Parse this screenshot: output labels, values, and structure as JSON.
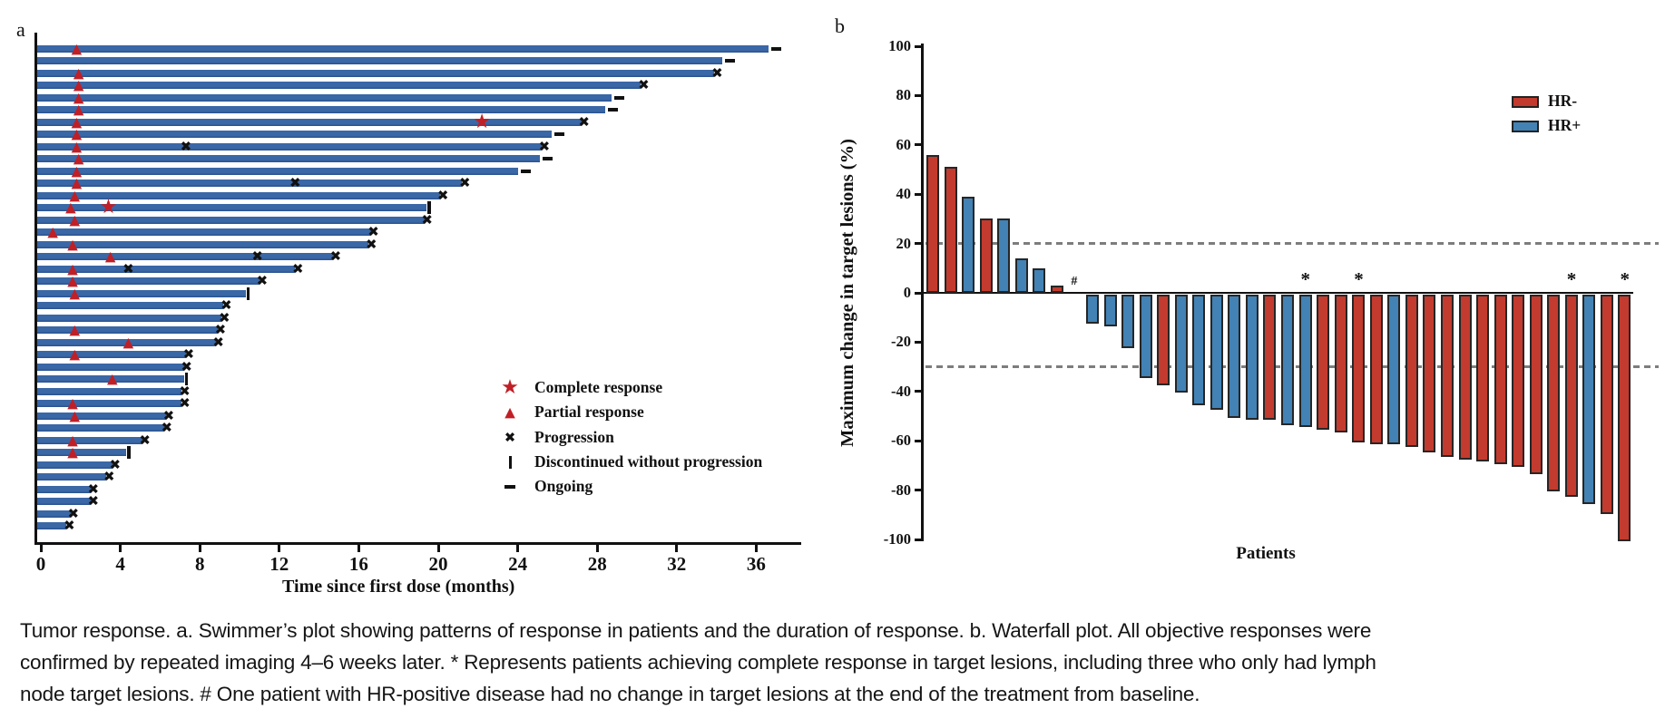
{
  "figure_labels": {
    "a": "a",
    "b": "b"
  },
  "caption": {
    "line1": "Tumor response. a. Swimmer’s plot showing patterns of response in patients and the duration of response. b. Waterfall plot. All objective responses were",
    "line2": "confirmed by repeated imaging 4–6 weeks later. * Represents patients achieving complete response in target lesions, including three who only had lymph",
    "line3": "node target lesions. # One patient with HR-positive disease had no change in target lesions at the end of the treatment from baseline."
  },
  "colors": {
    "swimmer_bar": "#3a67a6",
    "swimmer_bar_edge": "#27508c",
    "response_red": "#c01f26",
    "marker_black": "#111111",
    "waterfall_red": "#c23b2e",
    "waterfall_blue": "#4282b4",
    "waterfall_bar_border": "#262626",
    "threshold_gray": "#7d7d7d",
    "axis_black": "#111111"
  },
  "chart_data": [
    {
      "type": "bar",
      "subtype": "swimmer",
      "panel": "a",
      "xlabel": "Time since first dose (months)",
      "xticks": [
        0,
        4,
        8,
        12,
        16,
        20,
        24,
        28,
        32,
        36
      ],
      "xlim": [
        0,
        38.5
      ],
      "legend": [
        {
          "marker": "star",
          "label": "Complete response"
        },
        {
          "marker": "triangle",
          "label": "Partial response"
        },
        {
          "marker": "x",
          "label": "Progression"
        },
        {
          "marker": "vbar",
          "label": "Discontinued without progression"
        },
        {
          "marker": "dash",
          "label": "Ongoing"
        }
      ],
      "patients": [
        {
          "len": 36.6,
          "tri": 1.8,
          "end": "ongoing"
        },
        {
          "len": 34.3,
          "end": "ongoing"
        },
        {
          "len": 33.9,
          "tri": 1.9,
          "end": "progression"
        },
        {
          "len": 30.2,
          "tri": 1.9,
          "end": "progression"
        },
        {
          "len": 28.7,
          "tri": 1.9,
          "end": "ongoing"
        },
        {
          "len": 28.4,
          "tri": 1.9,
          "end": "ongoing"
        },
        {
          "len": 27.2,
          "tri": 1.8,
          "star": 22.2,
          "end": "progression"
        },
        {
          "len": 25.7,
          "tri": 1.8,
          "end": "ongoing"
        },
        {
          "len": 25.2,
          "tri": 1.8,
          "xs": [
            7.3
          ],
          "end": "progression"
        },
        {
          "len": 25.1,
          "tri": 1.9,
          "end": "ongoing"
        },
        {
          "len": 24.0,
          "tri": 1.8,
          "end": "ongoing"
        },
        {
          "len": 21.2,
          "tri": 1.8,
          "xs": [
            12.8
          ],
          "end": "progression"
        },
        {
          "len": 20.1,
          "tri": 1.7,
          "end": "progression"
        },
        {
          "len": 19.4,
          "tri": 1.5,
          "star": 3.4,
          "end": "discontinued"
        },
        {
          "len": 19.3,
          "tri": 1.7,
          "end": "progression"
        },
        {
          "len": 16.6,
          "tri": 0.6,
          "end": "progression"
        },
        {
          "len": 16.5,
          "tri": 1.6,
          "end": "progression"
        },
        {
          "len": 14.7,
          "tri": 3.5,
          "xs": [
            10.9
          ],
          "end": "progression"
        },
        {
          "len": 12.8,
          "tri": 1.6,
          "xs": [
            4.4
          ],
          "end": "progression"
        },
        {
          "len": 11.0,
          "tri": 1.6,
          "end": "progression"
        },
        {
          "len": 10.3,
          "tri": 1.7,
          "end": "discontinued"
        },
        {
          "len": 9.2,
          "end": "progression"
        },
        {
          "len": 9.1,
          "end": "progression"
        },
        {
          "len": 8.9,
          "tri": 1.7,
          "end": "progression"
        },
        {
          "len": 8.8,
          "tri": 4.4,
          "end": "progression"
        },
        {
          "len": 7.3,
          "tri": 1.7,
          "end": "progression"
        },
        {
          "len": 7.2,
          "end": "progression"
        },
        {
          "len": 7.2,
          "tri": 3.6,
          "end": "discontinued"
        },
        {
          "len": 7.1,
          "end": "progression"
        },
        {
          "len": 7.1,
          "tri": 1.6,
          "end": "progression"
        },
        {
          "len": 6.3,
          "tri": 1.7,
          "end": "progression"
        },
        {
          "len": 6.2,
          "end": "progression"
        },
        {
          "len": 5.1,
          "tri": 1.6,
          "end": "progression"
        },
        {
          "len": 4.3,
          "tri": 1.6,
          "end": "discontinued"
        },
        {
          "len": 3.6,
          "end": "progression"
        },
        {
          "len": 3.3,
          "end": "progression"
        },
        {
          "len": 2.5,
          "end": "progression"
        },
        {
          "len": 2.5,
          "end": "progression"
        },
        {
          "len": 1.5,
          "end": "progression"
        },
        {
          "len": 1.3,
          "end": "progression"
        }
      ]
    },
    {
      "type": "bar",
      "subtype": "waterfall",
      "panel": "b",
      "ylabel": "Maximum change in target lesions (%)",
      "xlabel": "Patients",
      "yticks": [
        100,
        80,
        60,
        40,
        20,
        0,
        -20,
        -40,
        -60,
        -80,
        -100
      ],
      "ylim": [
        -100,
        100
      ],
      "thresholds": [
        20,
        -30
      ],
      "legend": [
        {
          "label": "HR-",
          "color": "#c23b2e"
        },
        {
          "label": "HR+",
          "color": "#4282b4"
        }
      ],
      "annotations": {
        "zero_change": "#",
        "complete_response": "*"
      },
      "patients": [
        {
          "v": 56,
          "g": "HR-"
        },
        {
          "v": 51,
          "g": "HR-"
        },
        {
          "v": 39,
          "g": "HR+"
        },
        {
          "v": 30,
          "g": "HR-"
        },
        {
          "v": 30,
          "g": "HR+"
        },
        {
          "v": 14,
          "g": "HR+"
        },
        {
          "v": 10,
          "g": "HR+"
        },
        {
          "v": 3,
          "g": "HR-"
        },
        {
          "v": 0,
          "g": "HR+",
          "note": "#"
        },
        {
          "v": -12,
          "g": "HR+"
        },
        {
          "v": -13,
          "g": "HR+"
        },
        {
          "v": -22,
          "g": "HR+"
        },
        {
          "v": -34,
          "g": "HR+"
        },
        {
          "v": -37,
          "g": "HR-"
        },
        {
          "v": -40,
          "g": "HR+"
        },
        {
          "v": -45,
          "g": "HR+"
        },
        {
          "v": -47,
          "g": "HR+"
        },
        {
          "v": -50,
          "g": "HR+"
        },
        {
          "v": -51,
          "g": "HR+"
        },
        {
          "v": -51,
          "g": "HR-"
        },
        {
          "v": -53,
          "g": "HR+"
        },
        {
          "v": -54,
          "g": "HR+",
          "note": "*"
        },
        {
          "v": -55,
          "g": "HR-"
        },
        {
          "v": -56,
          "g": "HR-"
        },
        {
          "v": -60,
          "g": "HR-",
          "note": "*"
        },
        {
          "v": -61,
          "g": "HR-"
        },
        {
          "v": -61,
          "g": "HR+"
        },
        {
          "v": -62,
          "g": "HR-"
        },
        {
          "v": -64,
          "g": "HR-"
        },
        {
          "v": -66,
          "g": "HR-"
        },
        {
          "v": -67,
          "g": "HR-"
        },
        {
          "v": -68,
          "g": "HR-"
        },
        {
          "v": -69,
          "g": "HR-"
        },
        {
          "v": -70,
          "g": "HR-"
        },
        {
          "v": -73,
          "g": "HR-"
        },
        {
          "v": -80,
          "g": "HR-"
        },
        {
          "v": -82,
          "g": "HR-",
          "note": "*"
        },
        {
          "v": -85,
          "g": "HR+"
        },
        {
          "v": -89,
          "g": "HR-"
        },
        {
          "v": -100,
          "g": "HR-",
          "note": "*"
        }
      ]
    }
  ]
}
